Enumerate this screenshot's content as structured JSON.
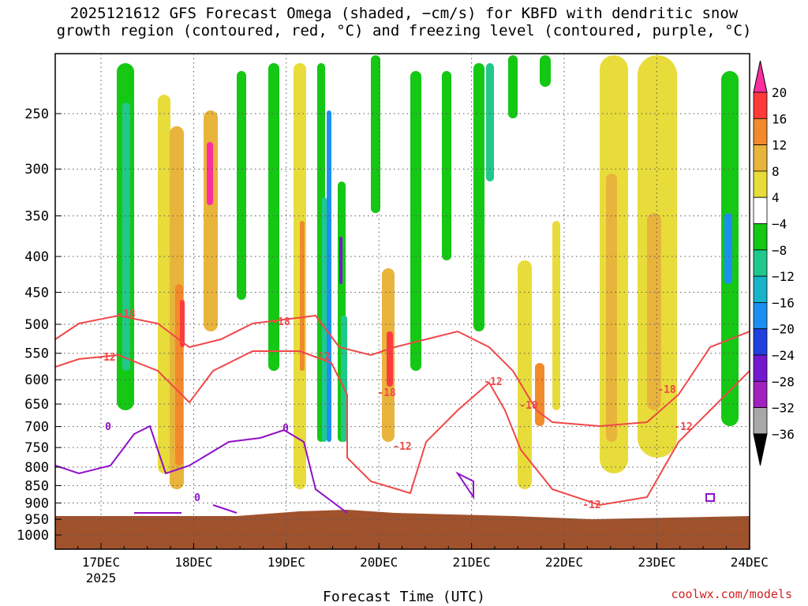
{
  "title_line1": "2025121612 GFS Forecast Omega (shaded, −cm/s) for KBFD with dendritic snow",
  "title_line2": "growth region (contoured, red, °C) and freezing level (contoured, purple, °C)",
  "credit": "coolwx.com/models",
  "chart_data": {
    "type": "heatmap",
    "xlabel": "Forecast Time (UTC)",
    "ylabel": "",
    "x_ticks": [
      "17DEC",
      "18DEC",
      "19DEC",
      "20DEC",
      "21DEC",
      "22DEC",
      "23DEC",
      "24DEC"
    ],
    "x_tick_year": "2025",
    "y_ticks": [
      250,
      300,
      350,
      400,
      450,
      500,
      550,
      600,
      650,
      700,
      750,
      800,
      850,
      900,
      950,
      1000
    ],
    "y_unit": "hPa",
    "y_scale": "log-pressure",
    "colorbar": {
      "labels": [
        "20",
        "16",
        "12",
        "8",
        "4",
        "−4",
        "−8",
        "−12",
        "−16",
        "−20",
        "−24",
        "−28",
        "−32",
        "−36"
      ],
      "colors": [
        "#ff2ea0",
        "#ff3a3a",
        "#f28a2c",
        "#e8b43c",
        "#e8dc3a",
        "#ffffff",
        "#14c814",
        "#20c88c",
        "#18b4c8",
        "#1c90f0",
        "#2040e0",
        "#7418d0",
        "#a020c0",
        "#a8a8a8",
        "#000000"
      ]
    },
    "contours": {
      "dendritic_snow_growth_red_C": [
        -12,
        -18
      ],
      "freezing_level_purple_C": [
        0
      ]
    },
    "shading_colors": {
      "terrain": "#a0522d",
      "dsgz_contour": "#f04848",
      "freezing_contour": "#9010c8"
    }
  }
}
